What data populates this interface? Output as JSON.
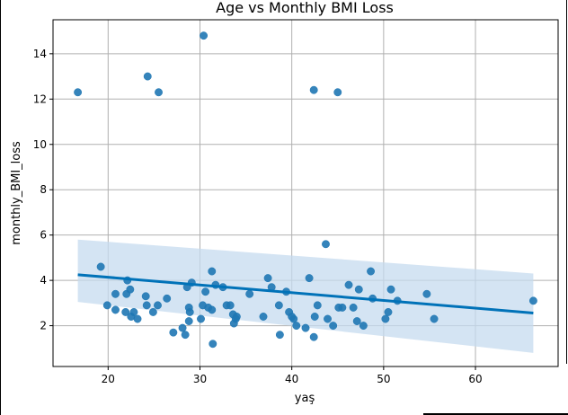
{
  "chart_data": {
    "type": "scatter",
    "title": "Age vs Monthly BMI Loss",
    "xlabel": "yaş",
    "ylabel": "monthly_BMI_loss",
    "xlim": [
      14.0,
      69.0
    ],
    "ylim": [
      0.2,
      15.5
    ],
    "xticks": [
      20,
      30,
      40,
      50,
      60
    ],
    "yticks": [
      2,
      4,
      6,
      8,
      10,
      12,
      14
    ],
    "grid": true,
    "colors": {
      "points": "#1f77b4",
      "fit_line": "#0072b8",
      "confidence_band": "#c6dbef"
    },
    "points": [
      {
        "x": 16.7,
        "y": 12.3
      },
      {
        "x": 19.2,
        "y": 4.6
      },
      {
        "x": 19.9,
        "y": 2.9
      },
      {
        "x": 20.8,
        "y": 3.4
      },
      {
        "x": 20.8,
        "y": 2.7
      },
      {
        "x": 21.9,
        "y": 2.6
      },
      {
        "x": 22.0,
        "y": 3.4
      },
      {
        "x": 22.1,
        "y": 4.0
      },
      {
        "x": 22.4,
        "y": 3.6
      },
      {
        "x": 22.5,
        "y": 2.4
      },
      {
        "x": 22.8,
        "y": 2.6
      },
      {
        "x": 23.2,
        "y": 2.3
      },
      {
        "x": 24.1,
        "y": 3.3
      },
      {
        "x": 24.2,
        "y": 2.9
      },
      {
        "x": 24.3,
        "y": 13.0
      },
      {
        "x": 24.9,
        "y": 2.6
      },
      {
        "x": 25.4,
        "y": 2.9
      },
      {
        "x": 25.5,
        "y": 12.3
      },
      {
        "x": 26.4,
        "y": 3.2
      },
      {
        "x": 27.1,
        "y": 1.7
      },
      {
        "x": 28.1,
        "y": 1.9
      },
      {
        "x": 28.4,
        "y": 1.6
      },
      {
        "x": 28.6,
        "y": 3.7
      },
      {
        "x": 28.8,
        "y": 2.8
      },
      {
        "x": 28.8,
        "y": 2.2
      },
      {
        "x": 28.9,
        "y": 2.6
      },
      {
        "x": 29.1,
        "y": 3.9
      },
      {
        "x": 30.1,
        "y": 2.3
      },
      {
        "x": 30.3,
        "y": 2.9
      },
      {
        "x": 30.4,
        "y": 14.8
      },
      {
        "x": 30.6,
        "y": 3.5
      },
      {
        "x": 30.9,
        "y": 2.8
      },
      {
        "x": 31.3,
        "y": 4.4
      },
      {
        "x": 31.3,
        "y": 2.7
      },
      {
        "x": 31.4,
        "y": 1.2
      },
      {
        "x": 31.7,
        "y": 3.8
      },
      {
        "x": 32.5,
        "y": 3.7
      },
      {
        "x": 32.9,
        "y": 2.9
      },
      {
        "x": 33.3,
        "y": 2.9
      },
      {
        "x": 33.6,
        "y": 2.5
      },
      {
        "x": 33.7,
        "y": 2.1
      },
      {
        "x": 33.9,
        "y": 2.3
      },
      {
        "x": 34.0,
        "y": 2.4
      },
      {
        "x": 35.4,
        "y": 3.4
      },
      {
        "x": 36.9,
        "y": 2.4
      },
      {
        "x": 37.4,
        "y": 4.1
      },
      {
        "x": 37.8,
        "y": 3.7
      },
      {
        "x": 38.6,
        "y": 2.9
      },
      {
        "x": 38.7,
        "y": 1.6
      },
      {
        "x": 39.4,
        "y": 3.5
      },
      {
        "x": 39.7,
        "y": 2.6
      },
      {
        "x": 40.0,
        "y": 2.4
      },
      {
        "x": 40.2,
        "y": 2.3
      },
      {
        "x": 40.5,
        "y": 2.0
      },
      {
        "x": 41.5,
        "y": 1.9
      },
      {
        "x": 41.9,
        "y": 4.1
      },
      {
        "x": 42.4,
        "y": 12.4
      },
      {
        "x": 42.4,
        "y": 1.5
      },
      {
        "x": 42.5,
        "y": 2.4
      },
      {
        "x": 42.8,
        "y": 2.9
      },
      {
        "x": 43.7,
        "y": 5.6
      },
      {
        "x": 43.9,
        "y": 2.3
      },
      {
        "x": 44.5,
        "y": 2.0
      },
      {
        "x": 45.0,
        "y": 12.3
      },
      {
        "x": 45.1,
        "y": 2.8
      },
      {
        "x": 45.5,
        "y": 2.8
      },
      {
        "x": 46.2,
        "y": 3.8
      },
      {
        "x": 46.7,
        "y": 2.8
      },
      {
        "x": 47.1,
        "y": 2.2
      },
      {
        "x": 47.3,
        "y": 3.6
      },
      {
        "x": 47.8,
        "y": 2.0
      },
      {
        "x": 48.6,
        "y": 4.4
      },
      {
        "x": 48.8,
        "y": 3.2
      },
      {
        "x": 50.2,
        "y": 2.3
      },
      {
        "x": 50.5,
        "y": 2.6
      },
      {
        "x": 50.8,
        "y": 3.6
      },
      {
        "x": 51.5,
        "y": 3.1
      },
      {
        "x": 54.7,
        "y": 3.4
      },
      {
        "x": 55.5,
        "y": 2.3
      },
      {
        "x": 66.3,
        "y": 3.1
      }
    ],
    "regression": {
      "x": [
        16.7,
        66.3
      ],
      "y": [
        4.25,
        2.56
      ],
      "ci_lower": [
        3.05,
        0.8
      ],
      "ci_upper": [
        5.8,
        4.3
      ]
    }
  }
}
